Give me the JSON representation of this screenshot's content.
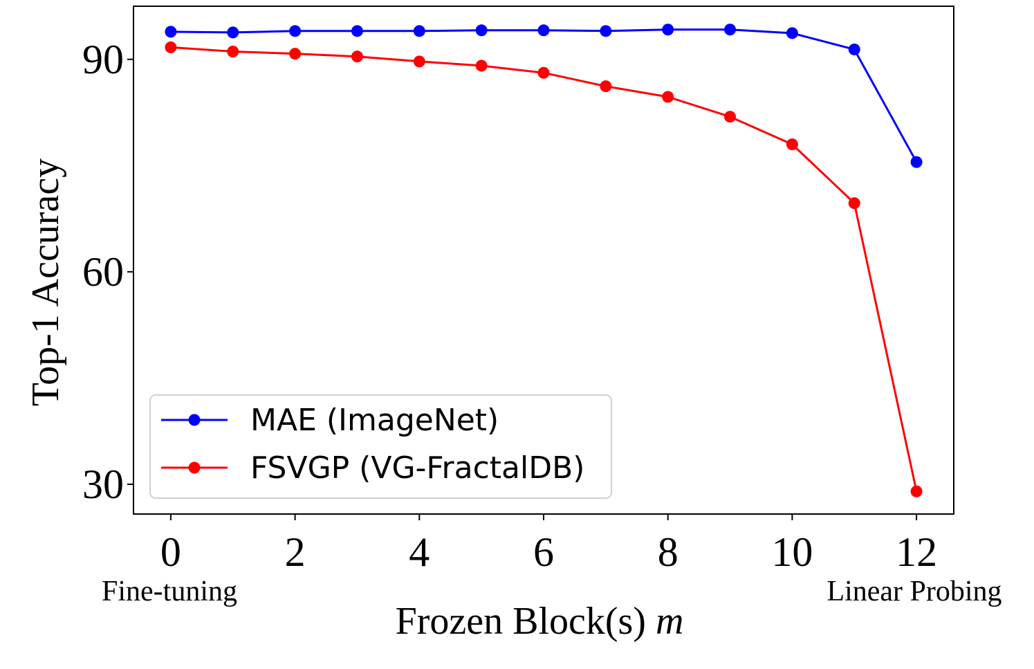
{
  "chart_data": {
    "type": "line",
    "title": "",
    "xlabel": "Frozen Block(s)",
    "xlabel_var": "m",
    "ylabel": "Top-1 Accuracy",
    "x": [
      0,
      1,
      2,
      3,
      4,
      5,
      6,
      7,
      8,
      9,
      10,
      11,
      12
    ],
    "xticks": [
      0,
      2,
      4,
      6,
      8,
      10,
      12
    ],
    "yticks": [
      30,
      60,
      90
    ],
    "xlim": [
      -0.6,
      12.6
    ],
    "ylim": [
      25.8,
      97.5
    ],
    "grid": false,
    "legend_position": "lower-left",
    "annotations": [
      {
        "text": "Fine-tuning",
        "x": 0
      },
      {
        "text": "Linear Probing",
        "x": 12
      }
    ],
    "series": [
      {
        "name": "MAE (ImageNet)",
        "color": "#0000ff",
        "values": [
          93.9,
          93.8,
          94.0,
          94.0,
          94.0,
          94.1,
          94.1,
          94.0,
          94.2,
          94.2,
          93.7,
          91.4,
          75.5
        ]
      },
      {
        "name": "FSVGP (VG-FractalDB)",
        "color": "#ff0000",
        "values": [
          91.7,
          91.1,
          90.8,
          90.4,
          89.7,
          89.1,
          88.1,
          86.2,
          84.7,
          81.9,
          78.0,
          69.7,
          29.0
        ]
      }
    ]
  }
}
